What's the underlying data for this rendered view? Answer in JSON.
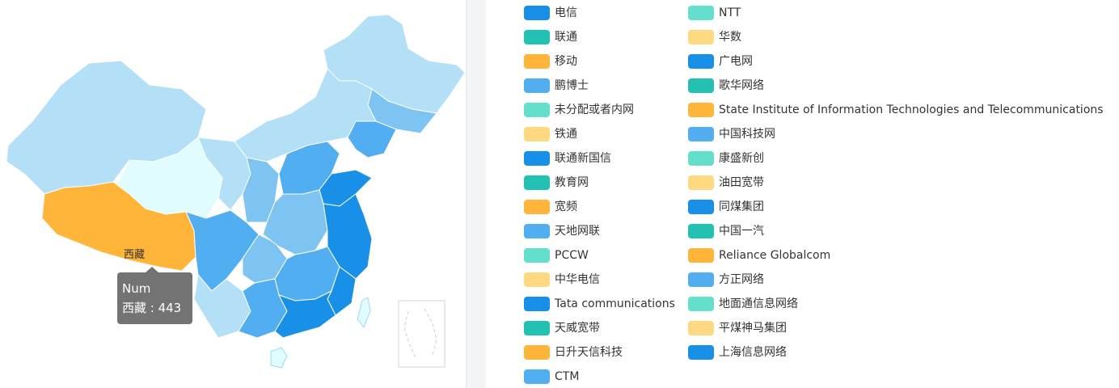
{
  "map": {
    "tooltip": {
      "series_name": "Num",
      "content": "西藏 : 443"
    },
    "highlight_label": "西藏"
  },
  "colors": {
    "c1": "#1890e8",
    "c2": "#22c1b2",
    "c3": "#ffb43a",
    "c4": "#51aef0",
    "c5": "#63dfcc",
    "c6": "#ffd981"
  },
  "legend": {
    "col1": [
      {
        "label": "电信",
        "color": "#1890e8"
      },
      {
        "label": "联通",
        "color": "#22c1b2"
      },
      {
        "label": "移动",
        "color": "#ffb43a"
      },
      {
        "label": "鹏博士",
        "color": "#51aef0"
      },
      {
        "label": "未分配或者内网",
        "color": "#63dfcc"
      },
      {
        "label": "铁通",
        "color": "#ffd981"
      },
      {
        "label": "联通新国信",
        "color": "#1890e8"
      },
      {
        "label": "教育网",
        "color": "#22c1b2"
      },
      {
        "label": "宽频",
        "color": "#ffb43a"
      },
      {
        "label": "天地网联",
        "color": "#51aef0"
      },
      {
        "label": "PCCW",
        "color": "#63dfcc"
      },
      {
        "label": "中华电信",
        "color": "#ffd981"
      },
      {
        "label": "Tata communications",
        "color": "#1890e8"
      },
      {
        "label": "天威宽带",
        "color": "#22c1b2"
      },
      {
        "label": "日升天信科技",
        "color": "#ffb43a"
      },
      {
        "label": "CTM",
        "color": "#51aef0"
      }
    ],
    "col2": [
      {
        "label": "NTT",
        "color": "#63dfcc"
      },
      {
        "label": "华数",
        "color": "#ffd981"
      },
      {
        "label": "广电网",
        "color": "#1890e8"
      },
      {
        "label": "歌华网络",
        "color": "#22c1b2"
      },
      {
        "label": "State Institute of Information Technologies and Telecommunications",
        "color": "#ffb43a"
      },
      {
        "label": "中国科技网",
        "color": "#51aef0"
      },
      {
        "label": "康盛新创",
        "color": "#63dfcc"
      },
      {
        "label": "油田宽带",
        "color": "#ffd981"
      },
      {
        "label": "同煤集团",
        "color": "#1890e8"
      },
      {
        "label": "中国一汽",
        "color": "#22c1b2"
      },
      {
        "label": "Reliance Globalcom",
        "color": "#ffb43a"
      },
      {
        "label": "方正网络",
        "color": "#51aef0"
      },
      {
        "label": "地面通信息网络",
        "color": "#63dfcc"
      },
      {
        "label": "平煤神马集团",
        "color": "#ffd981"
      },
      {
        "label": "上海信息网络",
        "color": "#1890e8"
      }
    ]
  }
}
